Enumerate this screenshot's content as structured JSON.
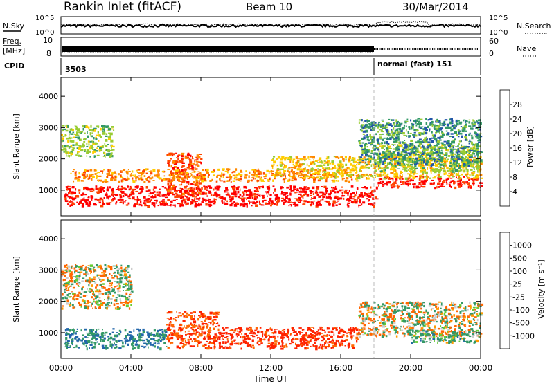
{
  "header": {
    "title": "Rankin Inlet (fitACF)",
    "beam": "Beam 10",
    "date": "30/Mar/2014"
  },
  "strips": {
    "nsky": {
      "label": "N.Sky",
      "ticks": [
        "10^5",
        "10^0"
      ],
      "right_label": "N.Search",
      "right_ticks": [
        "10^5",
        "10^0"
      ]
    },
    "freq": {
      "label_line1": "Freq.",
      "label_line2": "[MHz]",
      "ticks": [
        "10",
        "8"
      ],
      "right_label": "Nave",
      "right_ticks": [
        "60",
        "0"
      ]
    },
    "cpid": {
      "label": "CPID",
      "segments": [
        {
          "text": "3503",
          "start_hour": 0
        },
        {
          "text": "normal (fast) 151",
          "start_hour": 18
        }
      ]
    }
  },
  "chart_data": [
    {
      "type": "heatmap",
      "name": "power",
      "ylabel": "Slant Range [km]",
      "yticks": [
        1000,
        2000,
        3000,
        4000
      ],
      "ylim": [
        180,
        4600
      ],
      "xlim": [
        0,
        24
      ],
      "colorbar": {
        "label": "Power [dB]",
        "ticks": [
          "28",
          "24",
          "20",
          "16",
          "12",
          "8",
          "4"
        ],
        "colors": [
          "#ff0000",
          "#ff4400",
          "#ff8800",
          "#ffcc00",
          "#99cc33",
          "#339966",
          "#2255aa",
          "#0000ff"
        ]
      },
      "regions": [
        {
          "x": [
            0.2,
            18
          ],
          "y": [
            520,
            1150
          ],
          "level": 28
        },
        {
          "x": [
            18,
            24
          ],
          "y": [
            1100,
            1450
          ],
          "level": 28
        },
        {
          "x": [
            6,
            8
          ],
          "y": [
            900,
            2200
          ],
          "level": 24
        },
        {
          "x": [
            0.5,
            17
          ],
          "y": [
            1300,
            1700
          ],
          "level": 20
        },
        {
          "x": [
            12,
            24
          ],
          "y": [
            1400,
            2100
          ],
          "level": 16
        },
        {
          "x": [
            18,
            24
          ],
          "y": [
            1600,
            2500
          ],
          "level": 12
        },
        {
          "x": [
            17,
            24
          ],
          "y": [
            1800,
            3300
          ],
          "level": 8
        },
        {
          "x": [
            0,
            3
          ],
          "y": [
            2100,
            3100
          ],
          "level": 12
        }
      ]
    },
    {
      "type": "heatmap",
      "name": "velocity",
      "ylabel": "Slant Range [km]",
      "yticks": [
        1000,
        2000,
        3000,
        4000
      ],
      "ylim": [
        180,
        4600
      ],
      "xlim": [
        0,
        24
      ],
      "colorbar": {
        "label": "Velocity [m s⁻¹]",
        "ticks": [
          "1000",
          "500",
          "100",
          "25",
          "-25",
          "-100",
          "-500",
          "-1000"
        ],
        "colors": [
          "#1133aa",
          "#2266aa",
          "#339966",
          "#66cc33",
          "#cccccc",
          "#ff9900",
          "#ff6600",
          "#ff2200",
          "#ff0000"
        ]
      },
      "regions": [
        {
          "x": [
            0.2,
            6
          ],
          "y": [
            520,
            1150
          ],
          "value": 300
        },
        {
          "x": [
            6,
            9
          ],
          "y": [
            520,
            1700
          ],
          "value": -300
        },
        {
          "x": [
            9,
            17
          ],
          "y": [
            520,
            1200
          ],
          "value": -400
        },
        {
          "x": [
            17,
            24
          ],
          "y": [
            900,
            2000
          ],
          "value": 0
        },
        {
          "x": [
            0,
            4
          ],
          "y": [
            1800,
            3200
          ],
          "value": 0
        },
        {
          "x": [
            20,
            24
          ],
          "y": [
            700,
            1100
          ],
          "value": 150
        }
      ]
    }
  ],
  "xaxis": {
    "label": "Time UT",
    "ticks": [
      "00:00",
      "04:00",
      "08:00",
      "12:00",
      "16:00",
      "20:00",
      "00:00"
    ]
  }
}
